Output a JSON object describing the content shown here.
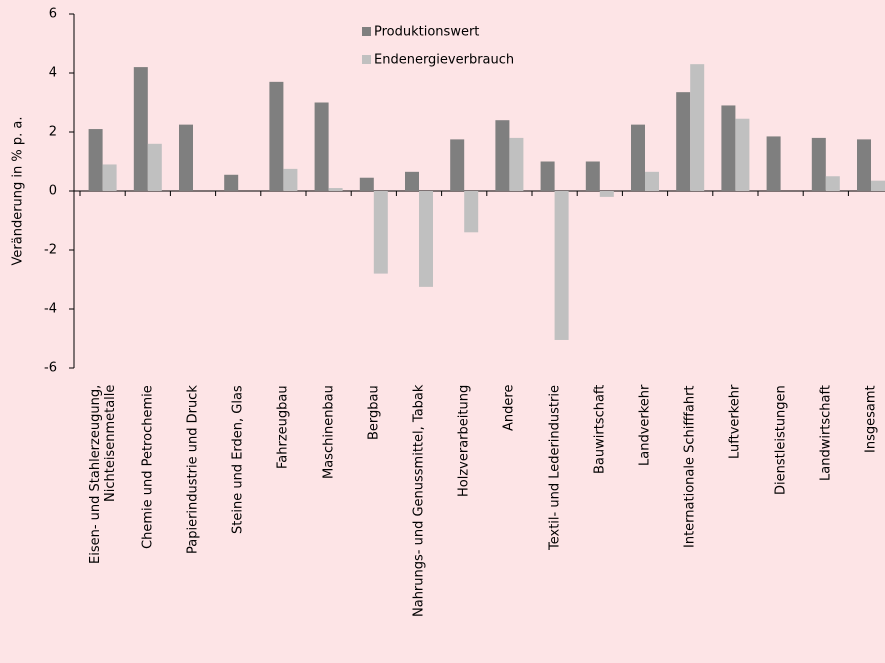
{
  "chart_data": {
    "type": "bar",
    "y_label": "Veränderung in % p. a.",
    "categories": [
      "Eisen- und Stahlerzeugung,\nNichteisenmetalle",
      "Chemie und  Petrochemie",
      "Papierindustrie und Druck",
      "Steine und Erden, Glas",
      "Fahrzeugbau",
      "Maschinenbau",
      "Bergbau",
      "Nahrungs- und Genussmittel, Tabak",
      "Holzverarbeitung",
      "Andere",
      "Textil- und Lederindustrie",
      "Bauwirtschaft",
      "Landverkehr",
      "Internationale Schifffahrt",
      "Luftverkehr",
      "Dienstleistungen",
      "Landwirtschaft",
      "Insgesamt"
    ],
    "series": [
      {
        "name": "Produktionswert",
        "color": "#7f7f7f",
        "values": [
          2.1,
          4.2,
          2.25,
          0.55,
          3.7,
          3.0,
          0.45,
          0.65,
          1.75,
          2.4,
          1.0,
          1.0,
          2.25,
          3.35,
          2.9,
          1.85,
          1.8,
          1.75
        ]
      },
      {
        "name": "Endenergieverbrauch",
        "color": "#c0c0c0",
        "values": [
          0.9,
          1.6,
          null,
          null,
          0.75,
          0.1,
          -2.8,
          -3.25,
          -1.4,
          1.8,
          -5.05,
          -0.2,
          0.65,
          4.3,
          2.45,
          null,
          0.5,
          0.35
        ]
      }
    ],
    "ylim": [
      -6,
      6
    ],
    "yticks": [
      -6,
      -4,
      -2,
      0,
      2,
      4,
      6
    ],
    "grid": false
  }
}
